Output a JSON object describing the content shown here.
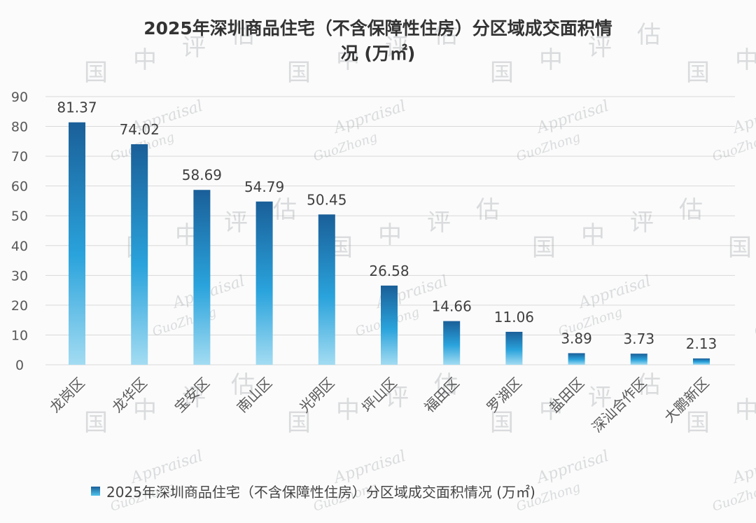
{
  "chart_data": {
    "type": "bar",
    "title": "2025年深圳商品住宅（不含保障性住房）分区域成交面积情况 (万㎡)",
    "title_lines": [
      "2025年深圳商品住宅（不含保障性住房）分区域成交面积情",
      "况 (万㎡)"
    ],
    "categories": [
      "龙岗区",
      "龙华区",
      "宝安区",
      "南山区",
      "光明区",
      "坪山区",
      "福田区",
      "罗湖区",
      "盐田区",
      "深汕合作区",
      "大鹏新区"
    ],
    "values": [
      81.37,
      74.02,
      58.69,
      54.79,
      50.45,
      26.58,
      14.66,
      11.06,
      3.89,
      3.73,
      2.13
    ],
    "value_labels": [
      "81.37",
      "74.02",
      "58.69",
      "54.79",
      "50.45",
      "26.58",
      "14.66",
      "11.06",
      "3.89",
      "3.73",
      "2.13"
    ],
    "series": [
      {
        "name": "2025年深圳商品住宅（不含保障性住房）分区域成交面积情况 (万㎡)",
        "values": [
          81.37,
          74.02,
          58.69,
          54.79,
          50.45,
          26.58,
          14.66,
          11.06,
          3.89,
          3.73,
          2.13
        ]
      }
    ],
    "y_ticks": [
      0,
      10,
      20,
      30,
      40,
      50,
      60,
      70,
      80,
      90
    ],
    "ylim": [
      0,
      90
    ],
    "xlabel": "",
    "ylabel": "",
    "grid": true,
    "legend_position": "bottom",
    "x_label_rotation": "diagonal",
    "colors": {
      "bar_top": "#1a5f99",
      "bar_mid": "#2aa3dc",
      "bar_bottom": "#a3dcf2",
      "grid": "#d9d9d9",
      "axis_text": "#595959"
    }
  },
  "watermark": {
    "logo_text": [
      "国",
      "中",
      "评",
      "估"
    ],
    "latin_texts": [
      "Appraisal",
      "GuoZhong"
    ]
  }
}
